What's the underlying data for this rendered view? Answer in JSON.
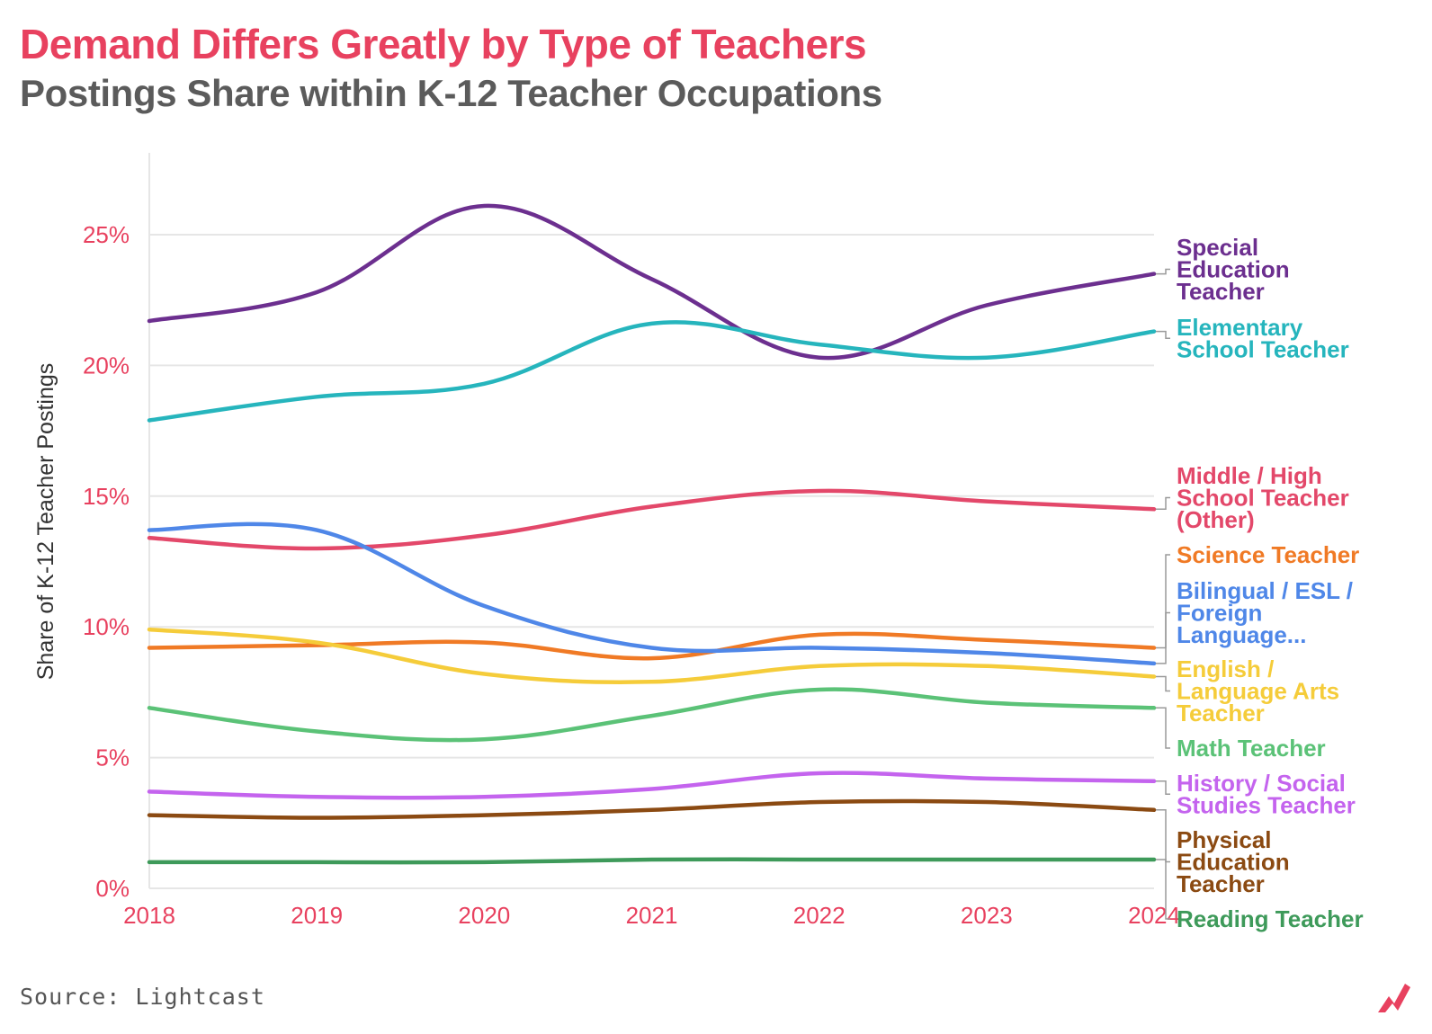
{
  "header": {
    "title": "Demand Differs Greatly by Type of Teachers",
    "subtitle": "Postings Share within K-12 Teacher Occupations"
  },
  "footer": {
    "source": "Source: Lightcast"
  },
  "colors": {
    "title": "#e8415f",
    "subtitle": "#5b5b5b",
    "ticks": "#e8415f",
    "grid": "#e6e6e6",
    "logo": "#e8415f"
  },
  "chart_data": {
    "type": "line",
    "title": "Demand Differs Greatly by Type of Teachers",
    "subtitle": "Postings Share within K-12 Teacher Occupations",
    "xlabel": "",
    "ylabel": "Share of K-12 Teacher Postings",
    "x": [
      2018,
      2019,
      2020,
      2021,
      2022,
      2023,
      2024
    ],
    "x_tick_labels": [
      "2018",
      "2019",
      "2020",
      "2021",
      "2022",
      "2023",
      "2024"
    ],
    "ylim": [
      0,
      28
    ],
    "y_ticks": [
      0,
      5,
      10,
      15,
      20,
      25
    ],
    "y_tick_labels": [
      "0%",
      "5%",
      "10%",
      "15%",
      "20%",
      "25%"
    ],
    "grid": true,
    "legend": "direct labels at right end of lines",
    "series": [
      {
        "name": "Special Education Teacher",
        "label_lines": [
          "Special",
          "Education",
          "Teacher"
        ],
        "color": "#6c2f8f",
        "values": [
          21.7,
          22.8,
          26.1,
          23.3,
          20.3,
          22.3,
          23.5
        ]
      },
      {
        "name": "Elementary School Teacher",
        "label_lines": [
          "Elementary",
          "School Teacher"
        ],
        "color": "#26b5bd",
        "values": [
          17.9,
          18.8,
          19.3,
          21.6,
          20.8,
          20.3,
          21.3
        ]
      },
      {
        "name": "Middle / High School Teacher (Other)",
        "label_lines": [
          "Middle / High",
          "School Teacher",
          "(Other)"
        ],
        "color": "#e3486a",
        "values": [
          13.4,
          13.0,
          13.5,
          14.6,
          15.2,
          14.8,
          14.5
        ]
      },
      {
        "name": "Science Teacher",
        "label_lines": [
          "Science Teacher"
        ],
        "color": "#f07a25",
        "values": [
          9.2,
          9.3,
          9.4,
          8.8,
          9.7,
          9.5,
          9.2
        ]
      },
      {
        "name": "Bilingual / ESL / Foreign Language...",
        "label_lines": [
          "Bilingual / ESL /",
          "Foreign",
          "Language..."
        ],
        "color": "#4f87e8",
        "values": [
          13.7,
          13.7,
          10.8,
          9.2,
          9.2,
          9.0,
          8.6
        ]
      },
      {
        "name": "English / Language Arts Teacher",
        "label_lines": [
          "English /",
          "Language Arts",
          "Teacher"
        ],
        "color": "#f5cc3a",
        "values": [
          9.9,
          9.4,
          8.2,
          7.9,
          8.5,
          8.5,
          8.1
        ]
      },
      {
        "name": "Math Teacher",
        "label_lines": [
          "Math Teacher"
        ],
        "color": "#5bc277",
        "values": [
          6.9,
          6.0,
          5.7,
          6.6,
          7.6,
          7.1,
          6.9
        ]
      },
      {
        "name": "History / Social Studies Teacher",
        "label_lines": [
          "History / Social",
          "Studies Teacher"
        ],
        "color": "#c464ee",
        "values": [
          3.7,
          3.5,
          3.5,
          3.8,
          4.4,
          4.2,
          4.1
        ]
      },
      {
        "name": "Physical Education Teacher",
        "label_lines": [
          "Physical",
          "Education",
          "Teacher"
        ],
        "color": "#8b4a12",
        "values": [
          2.8,
          2.7,
          2.8,
          3.0,
          3.3,
          3.3,
          3.0
        ]
      },
      {
        "name": "Reading Teacher",
        "label_lines": [
          "Reading Teacher"
        ],
        "color": "#3e9a5a",
        "values": [
          1.0,
          1.0,
          1.0,
          1.1,
          1.1,
          1.1,
          1.1
        ]
      }
    ]
  }
}
